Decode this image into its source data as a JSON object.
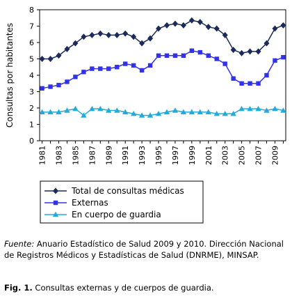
{
  "chart_data": {
    "type": "line",
    "ylabel": "Consultas por habitantes",
    "xlabel": "",
    "ylim": [
      0,
      8
    ],
    "yticks": [
      0,
      1,
      2,
      3,
      4,
      5,
      6,
      7,
      8
    ],
    "x": [
      1981,
      1982,
      1983,
      1984,
      1985,
      1986,
      1987,
      1988,
      1989,
      1990,
      1991,
      1992,
      1993,
      1994,
      1995,
      1996,
      1997,
      1998,
      1999,
      2000,
      2001,
      2002,
      2003,
      2004,
      2005,
      2006,
      2007,
      2008,
      2009,
      2010
    ],
    "xtick_labels": [
      "1981",
      "1983",
      "1985",
      "1987",
      "1989",
      "1991",
      "1993",
      "1995",
      "1997",
      "1999",
      "2001",
      "2003",
      "2005",
      "2007",
      "2009"
    ],
    "grid": false,
    "legend_position": "bottom",
    "series": [
      {
        "name": "Total de consultas médicas",
        "color": "#1a2a5a",
        "marker": "diamond",
        "values": [
          5.0,
          5.0,
          5.2,
          5.6,
          5.95,
          6.35,
          6.45,
          6.55,
          6.45,
          6.45,
          6.55,
          6.35,
          5.95,
          6.25,
          6.85,
          7.05,
          7.15,
          7.05,
          7.35,
          7.25,
          6.95,
          6.85,
          6.45,
          5.55,
          5.35,
          5.45,
          5.45,
          5.95,
          6.85,
          7.05
        ]
      },
      {
        "name": "Externas",
        "color": "#3232ee",
        "marker": "square",
        "values": [
          3.2,
          3.3,
          3.4,
          3.6,
          3.9,
          4.2,
          4.4,
          4.4,
          4.4,
          4.5,
          4.7,
          4.6,
          4.3,
          4.6,
          5.2,
          5.2,
          5.2,
          5.2,
          5.5,
          5.4,
          5.2,
          5.0,
          4.7,
          3.8,
          3.5,
          3.5,
          3.5,
          4.0,
          4.9,
          5.1
        ]
      },
      {
        "name": "En cuerpo de guardia",
        "color": "#22aadd",
        "marker": "triangle",
        "values": [
          1.75,
          1.75,
          1.75,
          1.85,
          1.95,
          1.55,
          1.95,
          1.95,
          1.85,
          1.85,
          1.75,
          1.65,
          1.55,
          1.55,
          1.65,
          1.75,
          1.85,
          1.75,
          1.75,
          1.75,
          1.75,
          1.65,
          1.65,
          1.65,
          1.95,
          1.95,
          1.95,
          1.85,
          1.95,
          1.85
        ]
      }
    ]
  },
  "caption": {
    "source_label": "Fuente:",
    "source_text": " Anuario Estadístico de Salud 2009 y 2010. Dirección Nacional de Registros Médicos y Estadísticas de Salud (DNRME), MINSAP.",
    "figure_label": "Fig. 1.",
    "figure_text": " Consultas externas y de cuerpos de guardia."
  }
}
